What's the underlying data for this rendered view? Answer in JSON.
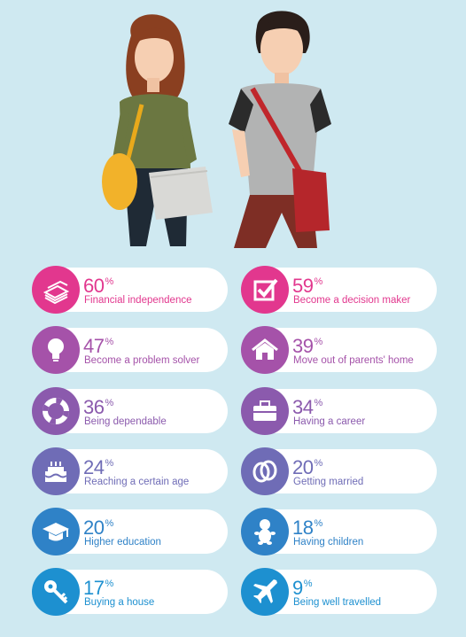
{
  "colors": {
    "background": "#cfe9f1",
    "pink": "#e2378e",
    "purple": "#9a56a8",
    "violet": "#7763b0",
    "blue": "#4f79bf",
    "azure": "#1f8fcf"
  },
  "stats": [
    {
      "percent": "60",
      "unit": "%",
      "label": "Financial independence",
      "icon": "money-stack-icon",
      "color": "#e2378e"
    },
    {
      "percent": "59",
      "unit": "%",
      "label": "Become a decision maker",
      "icon": "checkbox-icon",
      "color": "#e2378e"
    },
    {
      "percent": "47",
      "unit": "%",
      "label": "Become a problem solver",
      "icon": "lightbulb-icon",
      "color": "#a552a9"
    },
    {
      "percent": "39",
      "unit": "%",
      "label": "Move out of parents' home",
      "icon": "house-icon",
      "color": "#a552a9"
    },
    {
      "percent": "36",
      "unit": "%",
      "label": "Being dependable",
      "icon": "lifebuoy-icon",
      "color": "#8b5aad"
    },
    {
      "percent": "34",
      "unit": "%",
      "label": "Having a career",
      "icon": "briefcase-icon",
      "color": "#8b5aad"
    },
    {
      "percent": "24",
      "unit": "%",
      "label": "Reaching a certain age",
      "icon": "birthday-cake-icon",
      "color": "#6f6cb6"
    },
    {
      "percent": "20",
      "unit": "%",
      "label": "Getting married",
      "icon": "wedding-rings-icon",
      "color": "#6f6cb6"
    },
    {
      "percent": "20",
      "unit": "%",
      "label": "Higher education",
      "icon": "graduation-cap-icon",
      "color": "#2f82c7"
    },
    {
      "percent": "18",
      "unit": "%",
      "label": "Having children",
      "icon": "baby-icon",
      "color": "#2f82c7"
    },
    {
      "percent": "17",
      "unit": "%",
      "label": "Buying a house",
      "icon": "key-icon",
      "color": "#1d90d0"
    },
    {
      "percent": "9",
      "unit": "%",
      "label": "Being well travelled",
      "icon": "airplane-icon",
      "color": "#1d90d0"
    }
  ]
}
